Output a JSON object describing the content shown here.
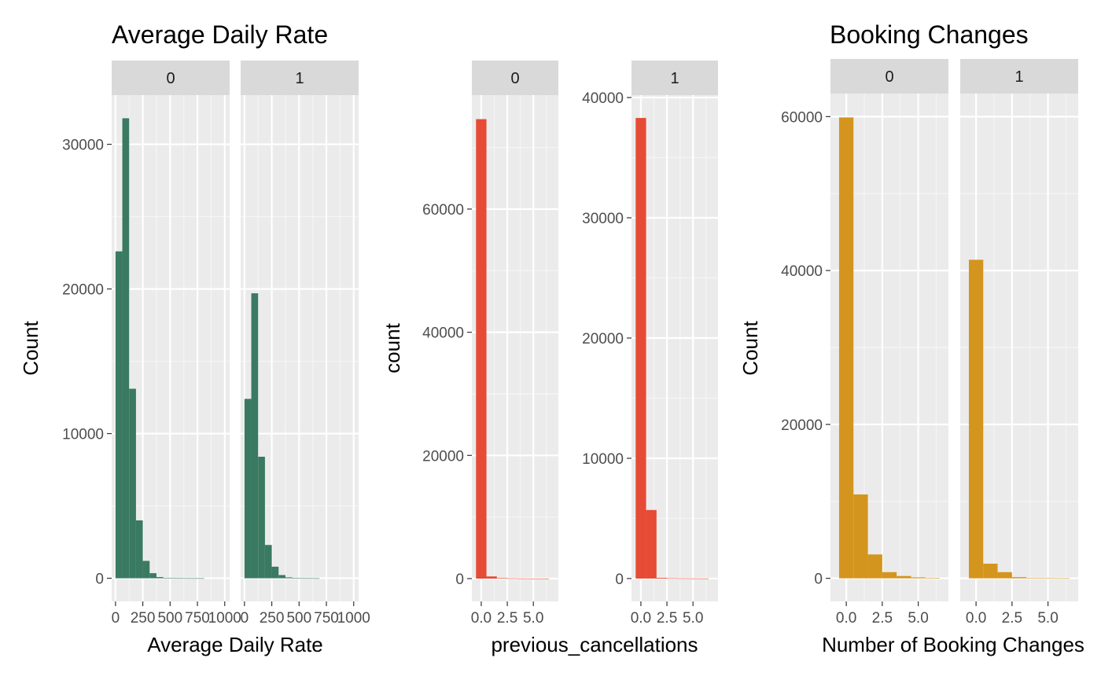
{
  "chart_data": [
    {
      "type": "bar",
      "title": "Average Daily Rate",
      "xlabel": "Average Daily Rate",
      "ylabel": "Count",
      "facets": [
        "0",
        "1"
      ],
      "bar_color": "#3a7a62",
      "x_ticks": [
        0,
        250,
        500,
        750,
        1000
      ],
      "x_tick_labels": [
        "0",
        "250",
        "500",
        "750",
        "1000"
      ],
      "xlim": [
        -35,
        1045
      ],
      "bin_width": 62.5,
      "bin_start": 0,
      "y_ticks": [
        0,
        10000,
        20000,
        30000
      ],
      "y_tick_labels": [
        "0",
        "10000",
        "20000",
        "30000"
      ],
      "ylim": [
        -1600,
        33400
      ],
      "panels": [
        {
          "facet": "0",
          "values": [
            22600,
            31800,
            13100,
            4000,
            1200,
            350,
            80,
            20,
            8,
            4,
            2,
            1,
            1,
            0,
            0,
            0
          ]
        },
        {
          "facet": "1",
          "values": [
            12400,
            19700,
            8400,
            2300,
            800,
            220,
            60,
            15,
            5,
            2,
            1,
            0,
            0,
            0,
            0,
            0
          ]
        }
      ]
    },
    {
      "type": "bar",
      "title": "",
      "xlabel": "previous_cancellations",
      "ylabel": "count",
      "facets": [
        "0",
        "1"
      ],
      "bar_color": "#e64b35",
      "x_ticks": [
        0,
        2.5,
        5
      ],
      "x_tick_labels": [
        "0.0",
        "2.5",
        "5.0"
      ],
      "xlim": [
        -0.9,
        7.4
      ],
      "bin_width": 1,
      "bin_start": -0.5,
      "free_y": true,
      "panels": [
        {
          "facet": "0",
          "values": [
            74600,
            350,
            90,
            40,
            20,
            10,
            5
          ],
          "y_ticks": [
            0,
            20000,
            40000,
            60000
          ],
          "y_tick_labels": [
            "0",
            "20000",
            "40000",
            "60000"
          ],
          "ylim": [
            -3700,
            78500
          ]
        },
        {
          "facet": "1",
          "values": [
            38300,
            5700,
            60,
            25,
            15,
            8,
            4
          ],
          "y_ticks": [
            0,
            10000,
            20000,
            30000,
            40000
          ],
          "y_tick_labels": [
            "0",
            "10000",
            "20000",
            "30000",
            "40000"
          ],
          "ylim": [
            -1900,
            40200
          ]
        }
      ]
    },
    {
      "type": "bar",
      "title": "Booking Changes",
      "xlabel": "Number of Booking Changes",
      "ylabel": "Count",
      "facets": [
        "0",
        "1"
      ],
      "bar_color": "#d4951e",
      "x_ticks": [
        0,
        2.5,
        5
      ],
      "x_tick_labels": [
        "0.0",
        "2.5",
        "5.0"
      ],
      "xlim": [
        -1.1,
        7.1
      ],
      "bin_width": 1,
      "bin_start": -0.5,
      "y_ticks": [
        0,
        20000,
        40000,
        60000
      ],
      "y_tick_labels": [
        "0",
        "20000",
        "40000",
        "60000"
      ],
      "ylim": [
        -3000,
        63000
      ],
      "panels": [
        {
          "facet": "0",
          "values": [
            59900,
            10900,
            3100,
            800,
            300,
            120,
            50
          ]
        },
        {
          "facet": "1",
          "values": [
            41400,
            1900,
            800,
            150,
            60,
            20,
            8
          ]
        }
      ]
    }
  ]
}
